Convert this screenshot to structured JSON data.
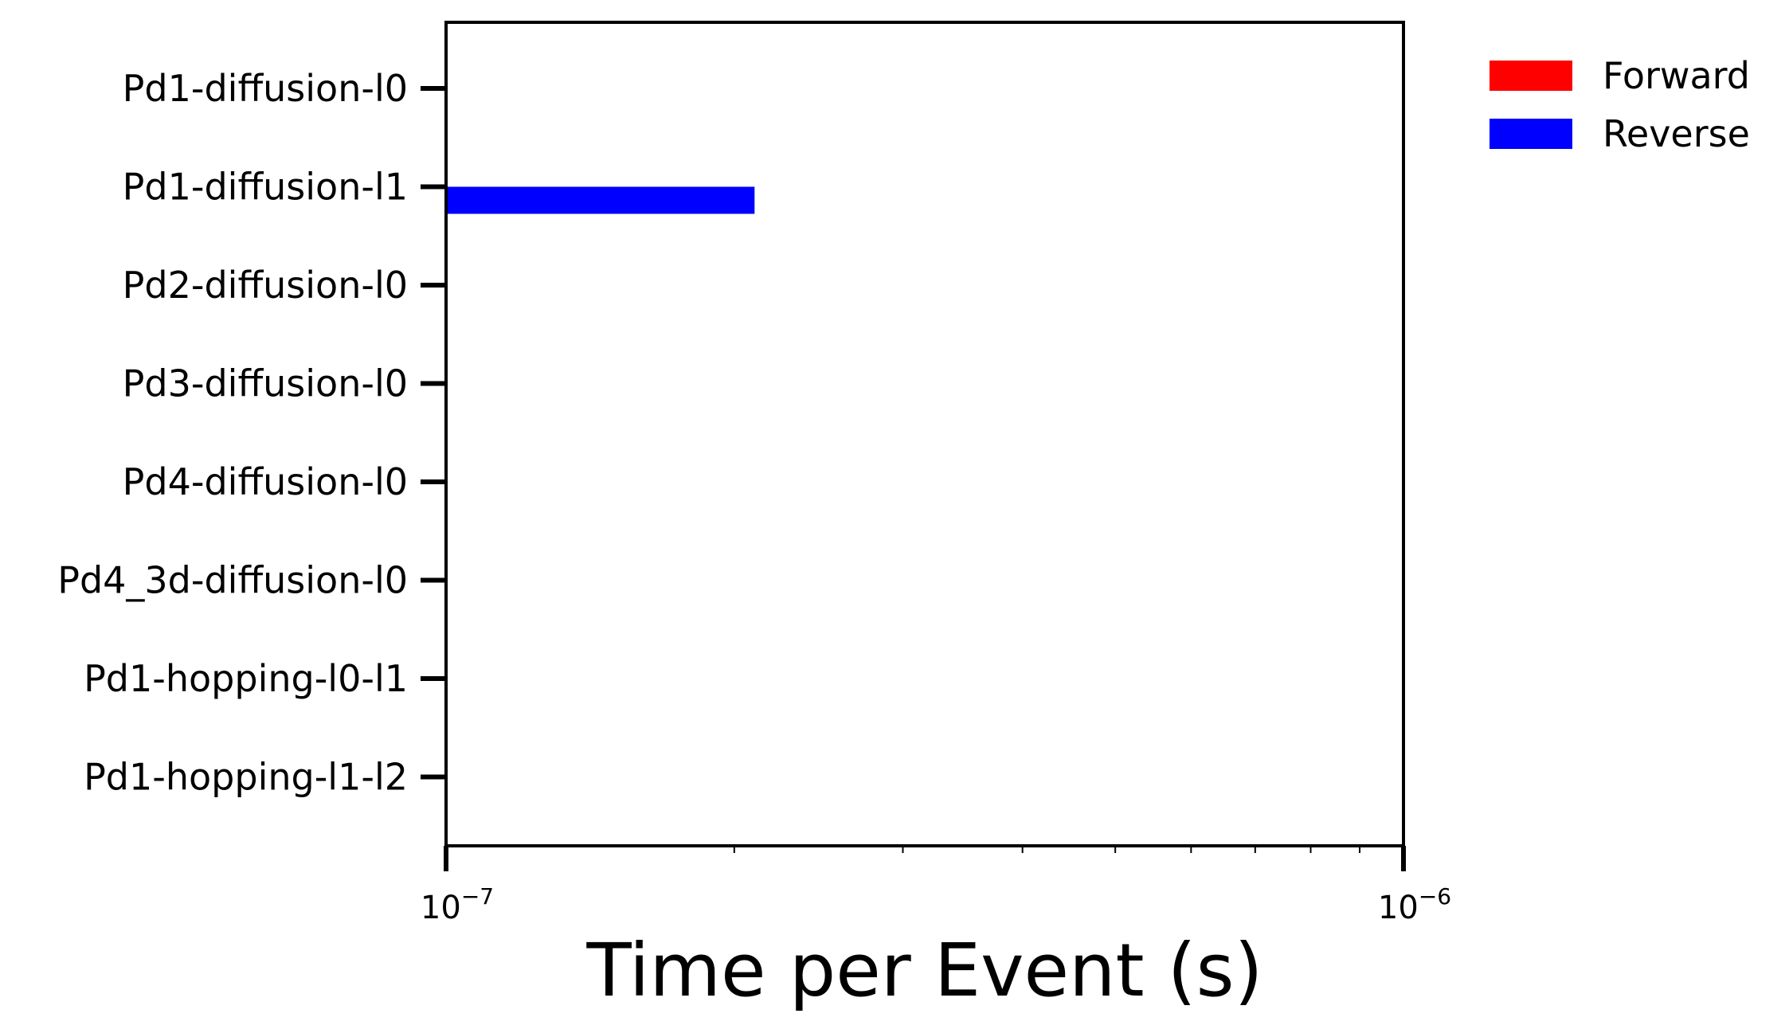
{
  "chart_data": {
    "type": "bar",
    "orientation": "horizontal",
    "title": "",
    "xlabel": "Time per Event (s)",
    "ylabel": "",
    "xscale": "log",
    "xlim": [
      1e-07,
      1e-06
    ],
    "x_ticks": [
      {
        "value": 1e-07,
        "base": "10",
        "exponent": "−7"
      },
      {
        "value": 1e-06,
        "base": "10",
        "exponent": "−6"
      }
    ],
    "categories": [
      "Pd1-diffusion-l0",
      "Pd1-diffusion-l1",
      "Pd2-diffusion-l0",
      "Pd3-diffusion-l0",
      "Pd4-diffusion-l0",
      "Pd4_3d-diffusion-l0",
      "Pd1-hopping-l0-l1",
      "Pd1-hopping-l1-l2"
    ],
    "series": [
      {
        "name": "Forward",
        "color": "#ff0000",
        "values": [
          null,
          null,
          null,
          null,
          null,
          null,
          null,
          null
        ]
      },
      {
        "name": "Reverse",
        "color": "#0000ff",
        "values": [
          null,
          2.1e-07,
          null,
          null,
          null,
          null,
          null,
          null
        ]
      }
    ],
    "legend": {
      "position": "outside-top-right",
      "entries": [
        "Forward",
        "Reverse"
      ]
    },
    "grid": false
  }
}
